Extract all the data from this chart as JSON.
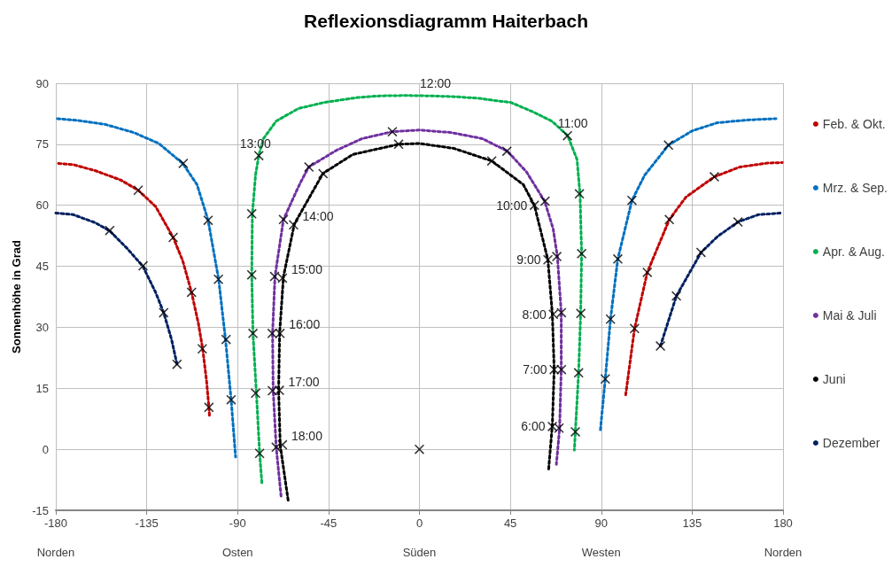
{
  "chart_data": {
    "type": "line",
    "title": "Reflexionsdiagramm Haiterbach",
    "ylabel": "Sonnenhöhe in Grad",
    "xlim": [
      -180,
      180
    ],
    "xticks": [
      -180,
      -135,
      -90,
      -45,
      0,
      45,
      90,
      135,
      180
    ],
    "ylim": [
      -15,
      90
    ],
    "yticks": [
      -15,
      0,
      15,
      30,
      45,
      60,
      75,
      90
    ],
    "grid": true,
    "legend": "right",
    "line_style": "dotted",
    "marker": "none",
    "series": [
      {
        "name": "Feb. & Okt.",
        "color": "#c00000",
        "x": [
          -178.7,
          -171.4,
          -160.4,
          -147.8,
          -139.2,
          -130.6,
          -121.9,
          -117.2,
          -112.8,
          -109.4,
          -107.3,
          -105.4,
          -104.2,
          -103.9,
          null,
          102.1,
          106.5,
          112.8,
          123.7,
          131.9,
          146,
          158.5,
          172.5,
          179.6
        ],
        "values": [
          70.3,
          70.0,
          68.5,
          66.2,
          63.7,
          59.7,
          52.1,
          46.4,
          38.6,
          30.9,
          24.7,
          16.9,
          10.3,
          8.1,
          null,
          13.4,
          29.7,
          43.5,
          56.5,
          62,
          67,
          69.4,
          70.4,
          70.5
        ]
      },
      {
        "name": "Mrz. & Sep.",
        "color": "#0070c0",
        "x": [
          -179.2,
          -168.2,
          -155.6,
          -141.5,
          -129,
          -117.2,
          -110.1,
          -104.6,
          -99.4,
          -96,
          -93.2,
          -91,
          null,
          89.6,
          92,
          94.6,
          98.2,
          105.2,
          111.5,
          123.3,
          135,
          147.5,
          163.2,
          176.5
        ],
        "values": [
          81.3,
          80.8,
          79.9,
          77.9,
          75.2,
          70.3,
          65.1,
          56.3,
          41.8,
          27.0,
          12.2,
          -1.9,
          null,
          4.8,
          17.3,
          32.0,
          46.8,
          61.2,
          67.4,
          74.8,
          78.3,
          80.3,
          81,
          81.3
        ]
      },
      {
        "name": "Apr. & Aug.",
        "color": "#00b050",
        "x": [
          -78,
          -79.1,
          -80.7,
          -82.4,
          -83,
          -82.7,
          -81.1,
          -79.5,
          -77.2,
          -70.9,
          -59.9,
          -47,
          -30.6,
          -19.7,
          -7.2,
          5.3,
          17.8,
          29.5,
          38.1,
          45.2,
          56.1,
          65.5,
          73.3,
          78,
          79.5,
          80.3,
          79.8,
          78.8,
          77.2,
          76.7
        ],
        "values": [
          -8.2,
          -1.0,
          13.8,
          28.5,
          42.9,
          57.9,
          67.5,
          72.3,
          76.4,
          80.7,
          83.8,
          85.3,
          86.5,
          86.9,
          87.0,
          86.9,
          86.7,
          86.3,
          85.7,
          85.3,
          83,
          80.7,
          77.2,
          71.3,
          62.7,
          48.0,
          33.2,
          18.8,
          4.4,
          -0.2
        ]
      },
      {
        "name": "Mai & Juli",
        "color": "#7030a0",
        "x": [
          -68.5,
          -70.9,
          -72.4,
          -72.7,
          -71.5,
          -67.3,
          -59.1,
          -54.8,
          -40.8,
          -28.3,
          -13.4,
          0,
          15.5,
          31.1,
          43.6,
          53,
          62,
          66.2,
          68.3,
          70.2,
          70.2,
          69.4,
          67.8
        ],
        "values": [
          -11.5,
          0.5,
          14.5,
          28.5,
          42.5,
          56.5,
          65.4,
          69.4,
          73.6,
          76.4,
          78.1,
          78.5,
          77.9,
          76.4,
          73.3,
          68.2,
          61,
          54.2,
          47.4,
          33.6,
          19.6,
          5.2,
          -3.7
        ]
      },
      {
        "name": "Juni",
        "color": "#000000",
        "x": [
          -65,
          -68.9,
          -69.7,
          -69.2,
          -67.3,
          -61.9,
          -47.8,
          -33,
          -10.3,
          0,
          17,
          35.8,
          51.4,
          56.9,
          63.6,
          65.8,
          66.7,
          65.8,
          63.9
        ],
        "values": [
          -12.5,
          0.9,
          14.5,
          28.5,
          42.5,
          55.4,
          67.8,
          72.5,
          75.0,
          75.2,
          74,
          70.9,
          65.1,
          60,
          46.6,
          33.2,
          19.6,
          6.0,
          -5.3
        ]
      },
      {
        "name": "Dezember",
        "color": "#002060",
        "x": [
          -180,
          -171.4,
          -160.4,
          -153.3,
          -144.7,
          -136.9,
          -130.6,
          -126.6,
          -122.7,
          -120,
          null,
          119.3,
          127.2,
          139.4,
          147.5,
          157.7,
          167.8,
          179.6
        ],
        "values": [
          58.1,
          57.7,
          55.7,
          53.7,
          49.4,
          45.0,
          38.6,
          33.6,
          27.0,
          20.9,
          null,
          25.4,
          37.7,
          48.4,
          52.3,
          55.9,
          57.7,
          58.1
        ]
      },
      {
        "type": "scatter",
        "marker": "cross",
        "color": "#000000",
        "x": [
          -153.3,
          -136.8,
          -126.6,
          -120,
          -139.2,
          -121.9,
          -112.8,
          -107.5,
          -104.2,
          -116.9,
          -104.6,
          -99.5,
          -95.7,
          -93.2,
          -79.5,
          -83,
          -83,
          -82.4,
          -81.1,
          -79.1,
          -71.7,
          -72.9,
          -72.8,
          -70.9,
          -67.3,
          -67.8,
          -69,
          -69.3,
          -67.8,
          -62.3,
          -54.7,
          -13.4,
          43.3,
          62.2,
          68,
          70.3,
          70.3,
          69.1,
          -47.7,
          -10.3,
          35.8,
          56.9,
          63.6,
          66.3,
          66.7,
          65.8,
          73.3,
          79.2,
          80.3,
          79.9,
          78.8,
          77.2,
          0,
          92,
          94.6,
          98.2,
          105.2,
          123.3,
          106.5,
          112.8,
          123.7,
          146,
          119.3,
          127.2,
          139.4,
          157.7
        ],
        "values": [
          53.8,
          45.1,
          33.6,
          20.9,
          63.7,
          52.1,
          38.6,
          24.7,
          10.3,
          70.3,
          56.3,
          41.8,
          27,
          12.2,
          72.2,
          57.9,
          42.9,
          28.5,
          13.8,
          -1.0,
          42.5,
          28.5,
          14.4,
          0.5,
          56.5,
          42.1,
          28.5,
          14.5,
          1.1,
          55.2,
          69.4,
          78.1,
          73.3,
          61,
          47.4,
          33.6,
          19.6,
          5.2,
          67.8,
          75.0,
          70.9,
          60,
          46.6,
          33.2,
          19.6,
          5.6,
          77.1,
          62.8,
          48.1,
          33.4,
          18.8,
          4.3,
          0,
          17.3,
          32,
          46.8,
          61.2,
          74.8,
          29.7,
          43.5,
          56.5,
          67,
          25.4,
          37.7,
          48.4,
          55.9
        ]
      }
    ],
    "annotations": [
      {
        "text": "12:00",
        "x": 5.3,
        "y": 86.9
      },
      {
        "text": "13:00",
        "x": -79.5,
        "y": 72.2
      },
      {
        "text": "14:00",
        "x": -62.3,
        "y": 55.2
      },
      {
        "text": "15:00",
        "x": -67.8,
        "y": 42.1
      },
      {
        "text": "16:00",
        "x": -69,
        "y": 28.5
      },
      {
        "text": "17:00",
        "x": -69.3,
        "y": 14.5
      },
      {
        "text": "18:00",
        "x": -67.8,
        "y": 1.1
      },
      {
        "text": "11:00",
        "x": 73.3,
        "y": 77.1
      },
      {
        "text": "10:00",
        "x": 56.9,
        "y": 60
      },
      {
        "text": "9:00",
        "x": 63.6,
        "y": 46.6
      },
      {
        "text": "8:00",
        "x": 66.3,
        "y": 33.2
      },
      {
        "text": "7:00",
        "x": 66.7,
        "y": 19.6
      },
      {
        "text": "6:00",
        "x": 65.8,
        "y": 5.6
      },
      "Norden",
      "Osten",
      "Süden",
      "Westen",
      "Norden"
    ]
  }
}
